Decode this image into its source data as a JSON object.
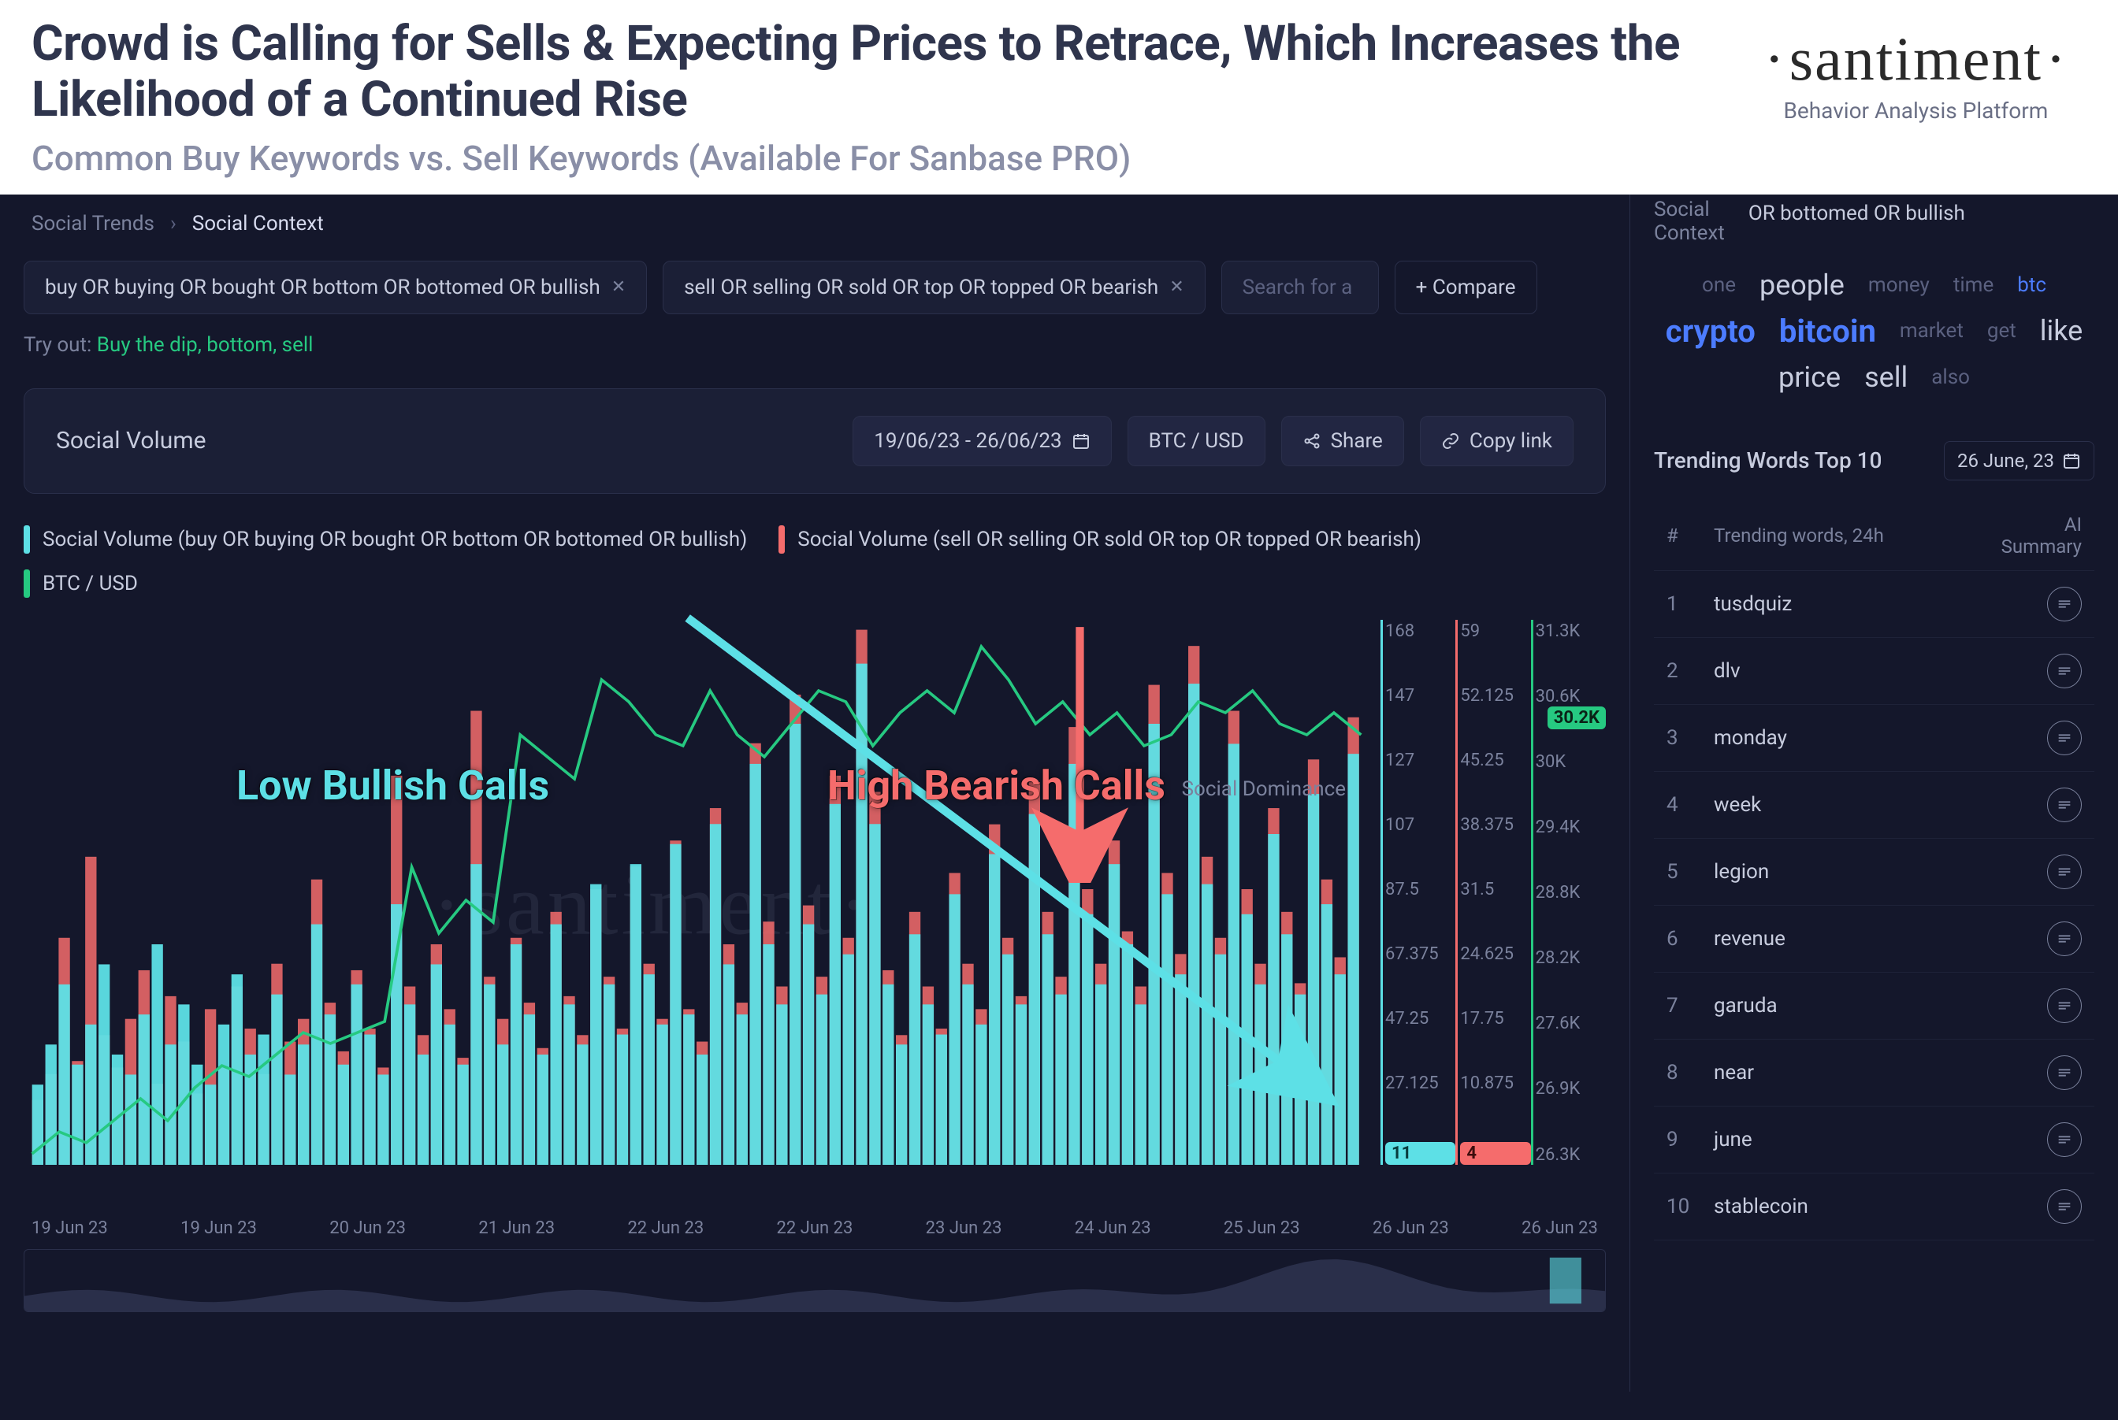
{
  "header": {
    "title": "Crowd is Calling for Sells & Expecting Prices to Retrace, Which Increases the Likelihood of a Continued Rise",
    "subtitle": "Common Buy Keywords vs. Sell Keywords (Available For Sanbase PRO)",
    "logo": "santiment",
    "logo_sub": "Behavior Analysis Platform"
  },
  "breadcrumbs": {
    "root": "Social Trends",
    "current": "Social Context"
  },
  "query_pills": {
    "buy": "buy OR buying OR bought OR bottom OR bottomed OR bullish",
    "sell": "sell OR selling OR sold OR top OR topped OR bearish",
    "search_placeholder": "Search for a",
    "compare": "+ Compare"
  },
  "tryout": {
    "label": "Try out:",
    "links": "Buy the dip, bottom, sell"
  },
  "panel": {
    "title": "Social Volume",
    "date_range": "19/06/23 - 26/06/23",
    "pair": "BTC / USD",
    "share": "Share",
    "copy": "Copy link"
  },
  "legend": {
    "buy": "Social Volume (buy OR buying OR bought OR bottom OR bottomed OR bullish)",
    "sell": "Social Volume (sell OR selling OR sold OR top OR topped OR bearish)",
    "price": "BTC / USD",
    "social_dom": "Social Dominance"
  },
  "annotations": {
    "bullish": "Low Bullish Calls",
    "bearish": "High Bearish Calls"
  },
  "chart": {
    "type": "combo-bar-line",
    "colors": {
      "buy_bar": "#5de0e6",
      "sell_bar": "#f56c6c",
      "price_line": "#26c981",
      "bg": "#14172b",
      "grid": "#2a2f4a",
      "annotation_cyan": "#5de0e6",
      "annotation_red": "#f56c6c"
    },
    "xlabels": [
      "19 Jun 23",
      "19 Jun 23",
      "20 Jun 23",
      "21 Jun 23",
      "22 Jun 23",
      "22 Jun 23",
      "23 Jun 23",
      "24 Jun 23",
      "25 Jun 23",
      "26 Jun 23",
      "26 Jun 23"
    ],
    "y_axes": {
      "buy": {
        "ticks": [
          "168",
          "147",
          "127",
          "107",
          "87.5",
          "67.375",
          "47.25",
          "27.125"
        ],
        "current_badge": "11"
      },
      "sell": {
        "ticks": [
          "59",
          "52.125",
          "45.25",
          "38.375",
          "31.5",
          "24.625",
          "17.75",
          "10.875"
        ],
        "current_badge": "4"
      },
      "price": {
        "ticks": [
          "31.3K",
          "30.6K",
          "30K",
          "29.4K",
          "28.8K",
          "28.2K",
          "27.6K",
          "26.9K",
          "26.3K"
        ],
        "current_badge": "30.2K"
      }
    },
    "price_series": [
      26.4,
      26.6,
      26.5,
      26.7,
      26.9,
      26.7,
      27.0,
      27.2,
      27.1,
      27.3,
      27.5,
      27.4,
      27.5,
      27.6,
      29.0,
      28.4,
      28.7,
      28.5,
      30.2,
      30.0,
      29.8,
      30.7,
      30.5,
      30.2,
      30.1,
      30.6,
      30.2,
      30.0,
      30.3,
      30.6,
      30.5,
      30.1,
      30.4,
      30.6,
      30.4,
      31.0,
      30.7,
      30.3,
      30.5,
      30.2,
      30.4,
      30.1,
      30.2,
      30.5,
      30.4,
      30.6,
      30.3,
      30.2,
      30.4,
      30.2
    ],
    "price_ylim": [
      26.3,
      31.3
    ],
    "sell_series": [
      20,
      28,
      70,
      32,
      95,
      40,
      30,
      45,
      60,
      25,
      52,
      38,
      22,
      48,
      30,
      55,
      42,
      28,
      62,
      38,
      45,
      88,
      50,
      35,
      60,
      42,
      30,
      120,
      55,
      40,
      68,
      48,
      33,
      140,
      58,
      45,
      70,
      50,
      36,
      78,
      52,
      40,
      85,
      58,
      42,
      92,
      62,
      45,
      100,
      48,
      38,
      110,
      68,
      50,
      130,
      75,
      55,
      145,
      80,
      58,
      120,
      70,
      165,
      115,
      60,
      40,
      78,
      55,
      42,
      90,
      62,
      48,
      105,
      70,
      52,
      118,
      78,
      58,
      135,
      85,
      62,
      100,
      72,
      55,
      148,
      90,
      65,
      160,
      95,
      70,
      140,
      85,
      62,
      110,
      78,
      56,
      125,
      88,
      64,
      138
    ],
    "sell_ylim": [
      0,
      170
    ],
    "buy_series": [
      8,
      12,
      18,
      10,
      14,
      20,
      11,
      9,
      15,
      22,
      12,
      16,
      10,
      8,
      14,
      19,
      11,
      13,
      17,
      9,
      12,
      24,
      15,
      10,
      18,
      13,
      9,
      26,
      16,
      11,
      20,
      14,
      10,
      30,
      18,
      12,
      22,
      15,
      11,
      24,
      16,
      12,
      28,
      18,
      13,
      30,
      19,
      14,
      32,
      15,
      11,
      34,
      20,
      15,
      40,
      22,
      16,
      44,
      24,
      17,
      36,
      21,
      50,
      34,
      18,
      12,
      23,
      16,
      13,
      27,
      18,
      14,
      31,
      21,
      16,
      35,
      23,
      17,
      40,
      25,
      18,
      30,
      22,
      16,
      44,
      27,
      19,
      48,
      28,
      21,
      42,
      25,
      18,
      33,
      23,
      17,
      37,
      26,
      19,
      41
    ],
    "buy_ylim": [
      0,
      55
    ],
    "watermark": "santiment"
  },
  "sidebar": {
    "context_label": "Social Context",
    "context_query": "OR bottomed OR bullish",
    "cloud": [
      {
        "w": "one",
        "s": "sm"
      },
      {
        "w": "people",
        "s": "big"
      },
      {
        "w": "money",
        "s": "sm"
      },
      {
        "w": "time",
        "s": "sm"
      },
      {
        "w": "btc",
        "s": "blue"
      },
      {
        "w": "crypto",
        "s": "blue big"
      },
      {
        "w": "bitcoin",
        "s": "blue big"
      },
      {
        "w": "market",
        "s": "sm"
      },
      {
        "w": "get",
        "s": "sm"
      },
      {
        "w": "like",
        "s": "big"
      },
      {
        "w": "price",
        "s": "big"
      },
      {
        "w": "sell",
        "s": "big"
      },
      {
        "w": "also",
        "s": "sm"
      }
    ],
    "trending_title": "Trending Words Top 10",
    "trending_date": "26 June, 23",
    "columns": {
      "idx": "#",
      "word": "Trending words, 24h",
      "ai": "AI Summary"
    },
    "words": [
      "tusdquiz",
      "dlv",
      "monday",
      "week",
      "legion",
      "revenue",
      "garuda",
      "near",
      "june",
      "stablecoin"
    ]
  }
}
